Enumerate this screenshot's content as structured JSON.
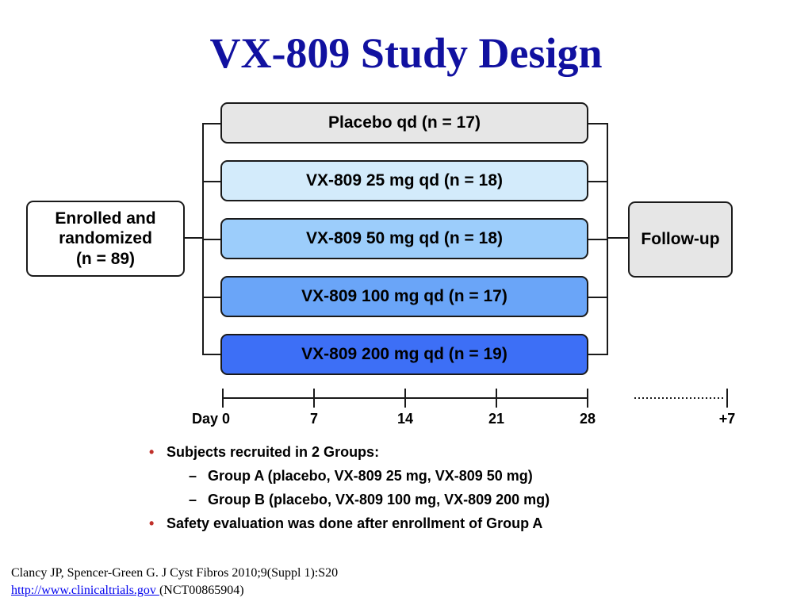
{
  "title": "VX-809 Study Design",
  "enrolled": {
    "line1": "Enrolled and",
    "line2": "randomized",
    "line3": "(n = 89)"
  },
  "arms": [
    {
      "label": "Placebo qd (n = 17)",
      "color": "#e6e6e6"
    },
    {
      "label": "VX-809 25 mg qd (n = 18)",
      "color": "#d3ebfb"
    },
    {
      "label": "VX-809 50 mg qd (n = 18)",
      "color": "#9ccdfb"
    },
    {
      "label": "VX-809 100 mg qd (n = 17)",
      "color": "#6aa5f8"
    },
    {
      "label": "VX-809 200 mg qd (n = 19)",
      "color": "#3d6ff6"
    }
  ],
  "followup": {
    "label": "Follow-up",
    "color": "#e6e6e6"
  },
  "timeline": {
    "ticks": [
      "Day 0",
      "7",
      "14",
      "21",
      "28"
    ],
    "followup_tick": "+7"
  },
  "bullets": [
    {
      "text": "Subjects recruited in 2 Groups:",
      "sub": [
        "Group A (placebo, VX-809 25 mg, VX-809 50 mg)",
        "Group B (placebo, VX-809 100 mg, VX-809 200 mg)"
      ]
    },
    {
      "text": "Safety evaluation was done after enrollment of Group A",
      "sub": []
    }
  ],
  "references": {
    "citation": "Clancy JP, Spencer-Green G. J Cyst Fibros 2010;9(Suppl 1):S20",
    "link_text": "http://www.clinicaltrials.gov ",
    "link_suffix": "(NCT00865904)"
  },
  "bullet_symbol": "•",
  "dash_symbol": "–"
}
